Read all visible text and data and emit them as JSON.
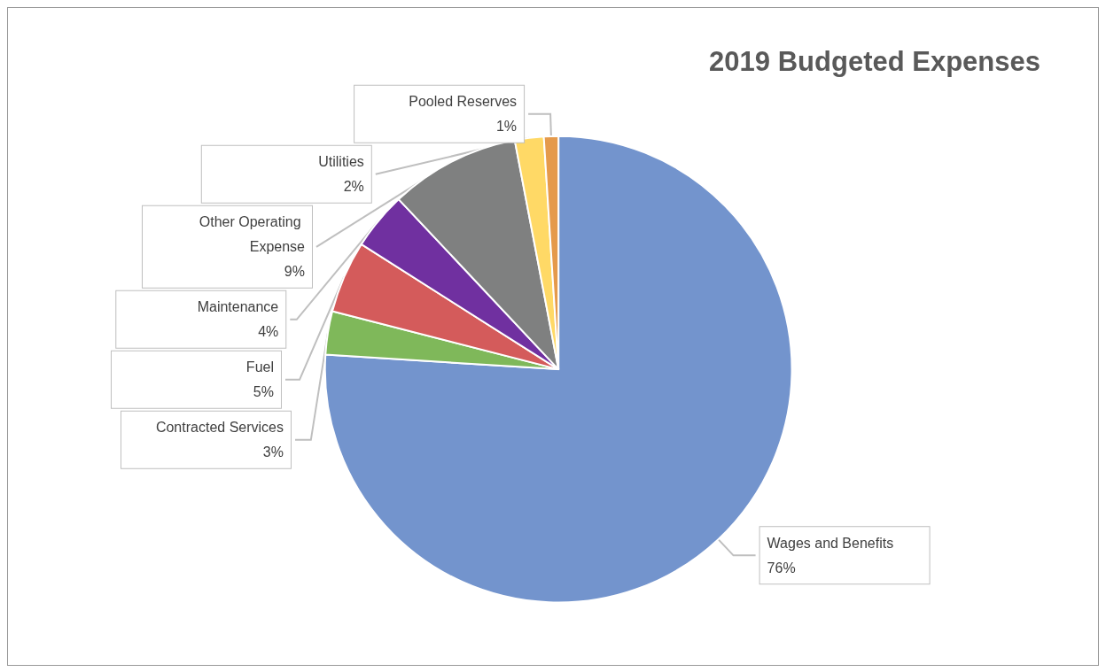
{
  "chart_data": {
    "type": "pie",
    "title": "2019 Budgeted Expenses",
    "categories": [
      "Wages and Benefits",
      "Contracted Services",
      "Fuel",
      "Maintenance",
      "Other Operating Expense",
      "Utilities",
      "Pooled Reserves"
    ],
    "values": [
      76,
      3,
      5,
      4,
      9,
      2,
      1
    ],
    "colors": [
      "#7394cd",
      "#7fb85a",
      "#d45b5b",
      "#7030a0",
      "#7f8080",
      "#ffd966",
      "#e59a4b"
    ],
    "value_labels": [
      "76%",
      "3%",
      "5%",
      "4%",
      "9%",
      "2%",
      "1%"
    ],
    "legend": false
  }
}
